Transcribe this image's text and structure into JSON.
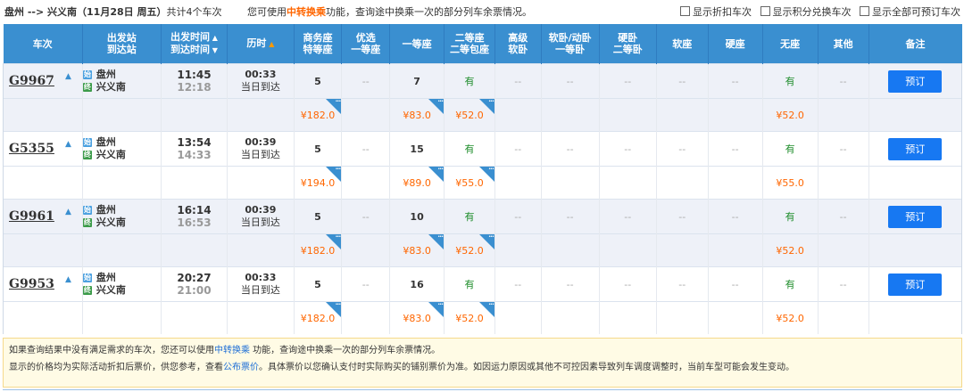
{
  "header": {
    "route": "盘州 --> 兴义南（11月28日  周五）",
    "count": "共计4个车次",
    "hint_pre": "您可使用",
    "hint_link": "中转换乘",
    "hint_post": "功能，查询途中换乘一次的部分列车余票情况。",
    "opt1": "显示折扣车次",
    "opt2": "显示积分兑换车次",
    "opt3": "显示全部可预订车次"
  },
  "columns": {
    "c0": "车次",
    "c1a": "出发站",
    "c1b": "到达站",
    "c2a": "出发时间",
    "c2b": "到达时间",
    "c3": "历时",
    "c4a": "商务座",
    "c4b": "特等座",
    "c5a": "优选",
    "c5b": "一等座",
    "c6": "一等座",
    "c7a": "二等座",
    "c7b": "二等包座",
    "c8a": "高级",
    "c8b": "软卧",
    "c9a": "软卧/动卧",
    "c9b": "一等卧",
    "c10a": "硬卧",
    "c10b": "二等卧",
    "c11": "软座",
    "c12": "硬座",
    "c13": "无座",
    "c14": "其他",
    "c15": "备注"
  },
  "trains": [
    {
      "no": "G9967",
      "from": "盘州",
      "to": "兴义南",
      "dep": "11:45",
      "arr": "12:18",
      "dur": "00:33",
      "day": "当日到达",
      "biz": "5",
      "yx": "--",
      "first": "7",
      "second": "有",
      "gj": "--",
      "rw": "--",
      "yw": "--",
      "rz": "--",
      "yz": "--",
      "wz": "有",
      "qt": "--",
      "book": "预订",
      "p_biz": "¥182.0",
      "p_first": "¥83.0",
      "p_second": "¥52.0",
      "p_wz": "¥52.0"
    },
    {
      "no": "G5355",
      "from": "盘州",
      "to": "兴义南",
      "dep": "13:54",
      "arr": "14:33",
      "dur": "00:39",
      "day": "当日到达",
      "biz": "5",
      "yx": "--",
      "first": "15",
      "second": "有",
      "gj": "--",
      "rw": "--",
      "yw": "--",
      "rz": "--",
      "yz": "--",
      "wz": "有",
      "qt": "--",
      "book": "预订",
      "p_biz": "¥194.0",
      "p_first": "¥89.0",
      "p_second": "¥55.0",
      "p_wz": "¥55.0"
    },
    {
      "no": "G9961",
      "from": "盘州",
      "to": "兴义南",
      "dep": "16:14",
      "arr": "16:53",
      "dur": "00:39",
      "day": "当日到达",
      "biz": "5",
      "yx": "--",
      "first": "10",
      "second": "有",
      "gj": "--",
      "rw": "--",
      "yw": "--",
      "rz": "--",
      "yz": "--",
      "wz": "有",
      "qt": "--",
      "book": "预订",
      "p_biz": "¥182.0",
      "p_first": "¥83.0",
      "p_second": "¥52.0",
      "p_wz": "¥52.0"
    },
    {
      "no": "G9953",
      "from": "盘州",
      "to": "兴义南",
      "dep": "20:27",
      "arr": "21:00",
      "dur": "00:33",
      "day": "当日到达",
      "biz": "5",
      "yx": "--",
      "first": "16",
      "second": "有",
      "gj": "--",
      "rw": "--",
      "yw": "--",
      "rz": "--",
      "yz": "--",
      "wz": "有",
      "qt": "--",
      "book": "预订",
      "p_biz": "¥182.0",
      "p_first": "¥83.0",
      "p_second": "¥52.0",
      "p_wz": "¥52.0"
    }
  ],
  "notice": {
    "l1_pre": "如果查询结果中没有满足需求的车次，您还可以使用",
    "l1_link": "中转换乘",
    "l1_post": " 功能，查询途中换乘一次的部分列车余票情况。",
    "l2_pre": "显示的价格均为实际活动折扣后票价，供您参考，查看",
    "l2_link": "公布票价",
    "l2_post": "。具体票价以您确认支付时实际购买的铺别票价为准。如因运力原因或其他不可控因素导致列车调度调整时，当前车型可能会发生变动。"
  }
}
